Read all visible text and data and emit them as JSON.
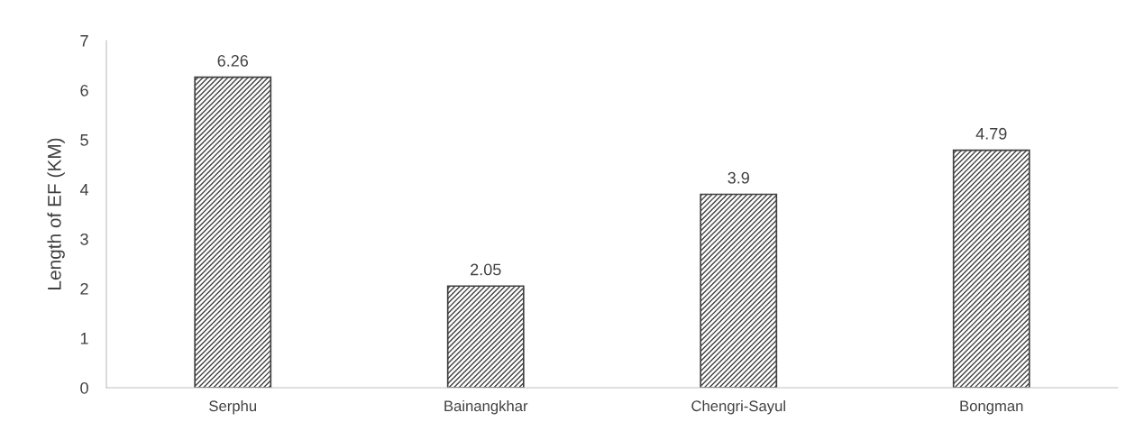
{
  "chart_data": {
    "type": "bar",
    "ylabel": "Length of EF (KM)",
    "categories": [
      "Serphu",
      "Bainangkhar",
      "Chengri-Sayul",
      "Bongman"
    ],
    "values": [
      6.26,
      2.05,
      3.9,
      4.79
    ],
    "color": "#404040",
    "ylim": [
      0,
      7
    ],
    "yticks": [
      0,
      1,
      2,
      3,
      4,
      5,
      6,
      7
    ],
    "grid": false,
    "data_labels": true
  }
}
